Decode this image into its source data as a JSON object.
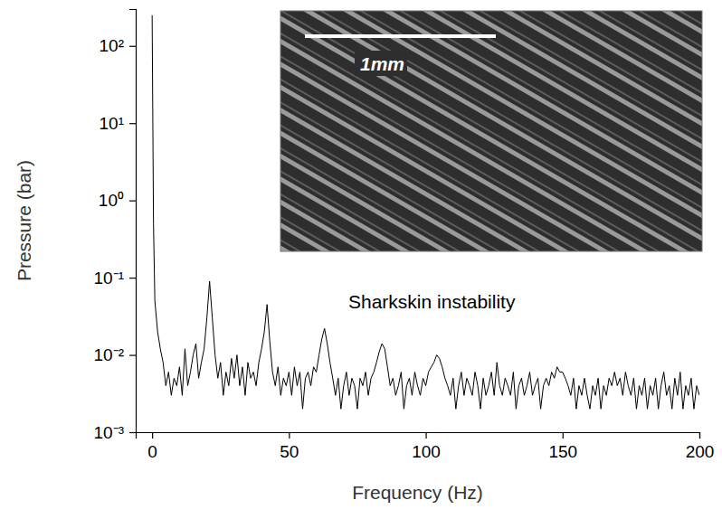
{
  "chart_data": {
    "type": "line",
    "color": "#000000",
    "log": "y",
    "x_label": "Frequency (Hz)",
    "y_label": "Pressure (bar)",
    "annotations": [
      {
        "text": "Sharkskin instability"
      },
      {
        "text": "1mm"
      }
    ],
    "xlim": [
      -6,
      200
    ],
    "xticks": [
      0,
      50,
      100,
      150,
      200
    ],
    "ylim": [
      0.001,
      300
    ],
    "yticks": [
      {
        "value": 0.001,
        "label": "10⁻³"
      },
      {
        "value": 0.01,
        "label": "10⁻²"
      },
      {
        "value": 0.1,
        "label": "10⁻¹"
      },
      {
        "value": 1,
        "label": "10⁰"
      },
      {
        "value": 10,
        "label": "10¹"
      },
      {
        "value": 100,
        "label": "10²"
      }
    ],
    "x": [
      0,
      0.5,
      1,
      2,
      3,
      4,
      5,
      6,
      7,
      8,
      9,
      10,
      11,
      12,
      13,
      14,
      15,
      16,
      17,
      18,
      19,
      20,
      21,
      22,
      23,
      24,
      25,
      26,
      27,
      28,
      29,
      30,
      31,
      32,
      33,
      34,
      35,
      36,
      37,
      38,
      39,
      40,
      41,
      42,
      43,
      44,
      45,
      46,
      47,
      48,
      49,
      50,
      51,
      52,
      53,
      54,
      55,
      56,
      57,
      58,
      59,
      60,
      61,
      62,
      63,
      64,
      65,
      66,
      67,
      68,
      69,
      70,
      71,
      72,
      73,
      74,
      75,
      76,
      77,
      78,
      79,
      80,
      81,
      82,
      83,
      84,
      85,
      86,
      87,
      88,
      89,
      90,
      91,
      92,
      93,
      94,
      95,
      96,
      97,
      98,
      99,
      100,
      101,
      102,
      103,
      104,
      105,
      106,
      107,
      108,
      109,
      110,
      111,
      112,
      113,
      114,
      115,
      116,
      117,
      118,
      119,
      120,
      121,
      122,
      123,
      124,
      125,
      126,
      127,
      128,
      129,
      130,
      131,
      132,
      133,
      134,
      135,
      136,
      137,
      138,
      139,
      140,
      141,
      142,
      143,
      144,
      145,
      146,
      147,
      148,
      149,
      150,
      151,
      152,
      153,
      154,
      155,
      156,
      157,
      158,
      159,
      160,
      161,
      162,
      163,
      164,
      165,
      166,
      167,
      168,
      169,
      170,
      171,
      172,
      173,
      174,
      175,
      176,
      177,
      178,
      179,
      180,
      181,
      182,
      183,
      184,
      185,
      186,
      187,
      188,
      189,
      190,
      191,
      192,
      193,
      194,
      195,
      196,
      197,
      198,
      199,
      200
    ],
    "values": [
      250,
      0.5,
      0.05,
      0.02,
      0.012,
      0.008,
      0.004,
      0.006,
      0.003,
      0.005,
      0.004,
      0.007,
      0.003,
      0.012,
      0.004,
      0.006,
      0.01,
      0.014,
      0.005,
      0.008,
      0.012,
      0.03,
      0.09,
      0.03,
      0.01,
      0.005,
      0.008,
      0.003,
      0.006,
      0.004,
      0.009,
      0.005,
      0.01,
      0.004,
      0.007,
      0.003,
      0.008,
      0.005,
      0.006,
      0.004,
      0.008,
      0.012,
      0.02,
      0.045,
      0.015,
      0.006,
      0.004,
      0.007,
      0.003,
      0.005,
      0.004,
      0.006,
      0.003,
      0.007,
      0.004,
      0.006,
      0.002,
      0.005,
      0.006,
      0.004,
      0.007,
      0.006,
      0.01,
      0.016,
      0.022,
      0.014,
      0.008,
      0.005,
      0.003,
      0.005,
      0.002,
      0.004,
      0.006,
      0.003,
      0.005,
      0.004,
      0.002,
      0.005,
      0.004,
      0.006,
      0.003,
      0.005,
      0.006,
      0.008,
      0.011,
      0.014,
      0.012,
      0.007,
      0.004,
      0.005,
      0.003,
      0.004,
      0.006,
      0.002,
      0.004,
      0.005,
      0.003,
      0.006,
      0.004,
      0.003,
      0.005,
      0.004,
      0.006,
      0.007,
      0.008,
      0.01,
      0.009,
      0.007,
      0.005,
      0.004,
      0.003,
      0.005,
      0.002,
      0.004,
      0.006,
      0.003,
      0.005,
      0.004,
      0.003,
      0.006,
      0.004,
      0.002,
      0.005,
      0.003,
      0.004,
      0.006,
      0.003,
      0.008,
      0.004,
      0.003,
      0.005,
      0.004,
      0.003,
      0.006,
      0.002,
      0.004,
      0.005,
      0.003,
      0.004,
      0.006,
      0.003,
      0.004,
      0.005,
      0.002,
      0.004,
      0.005,
      0.004,
      0.006,
      0.005,
      0.007,
      0.006,
      0.006,
      0.005,
      0.004,
      0.003,
      0.005,
      0.002,
      0.004,
      0.003,
      0.005,
      0.003,
      0.002,
      0.004,
      0.003,
      0.005,
      0.002,
      0.004,
      0.003,
      0.005,
      0.004,
      0.006,
      0.004,
      0.005,
      0.003,
      0.006,
      0.004,
      0.003,
      0.005,
      0.002,
      0.004,
      0.003,
      0.005,
      0.002,
      0.004,
      0.003,
      0.005,
      0.002,
      0.004,
      0.006,
      0.003,
      0.004,
      0.002,
      0.005,
      0.003,
      0.006,
      0.002,
      0.004,
      0.003,
      0.005,
      0.002,
      0.004,
      0.003
    ]
  }
}
